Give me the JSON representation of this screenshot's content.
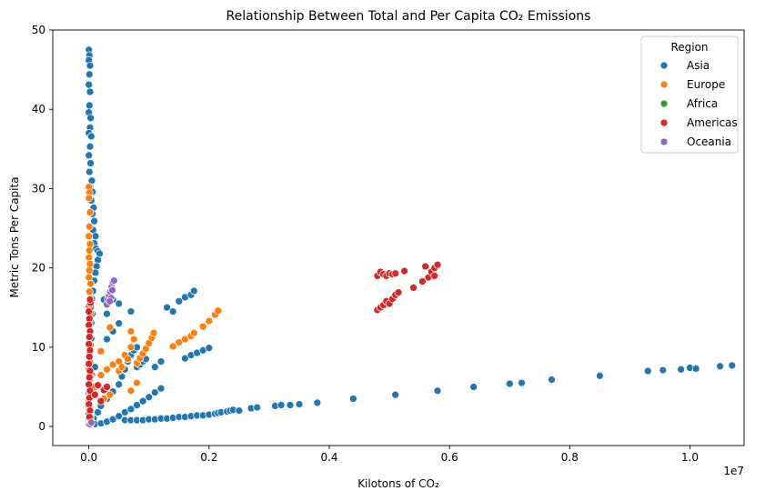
{
  "chart_data": {
    "type": "scatter",
    "title": "Relationship Between Total and Per Capita CO₂ Emissions",
    "xlabel": "Kilotons of CO₂",
    "ylabel": "Metric Tons Per Capita",
    "x_offset_label": "1e7",
    "x_scale": 10000000,
    "xlim": [
      -0.06,
      1.09
    ],
    "ylim": [
      -2.4,
      50
    ],
    "x_ticks": [
      0.0,
      0.2,
      0.4,
      0.6,
      0.8,
      1.0
    ],
    "x_tick_labels": [
      "0.0",
      "0.2",
      "0.4",
      "0.6",
      "0.8",
      "1.0"
    ],
    "y_ticks": [
      0,
      10,
      20,
      30,
      40,
      50
    ],
    "y_tick_labels": [
      "0",
      "10",
      "20",
      "30",
      "40",
      "50"
    ],
    "grid": false,
    "legend": {
      "title": "Region",
      "placement": "top-right"
    },
    "series": [
      {
        "name": "Asia",
        "color": "#1f77b4",
        "points": [
          [
            0.0,
            47.5
          ],
          [
            0.001,
            46.8
          ],
          [
            0.0,
            46.2
          ],
          [
            0.002,
            45.5
          ],
          [
            0.001,
            44.4
          ],
          [
            0.0,
            43.1
          ],
          [
            0.002,
            42.2
          ],
          [
            0.001,
            40.5
          ],
          [
            0.0,
            39.6
          ],
          [
            0.003,
            38.9
          ],
          [
            0.002,
            37.7
          ],
          [
            0.0,
            37.0
          ],
          [
            0.004,
            36.6
          ],
          [
            0.002,
            35.3
          ],
          [
            0.0,
            34.2
          ],
          [
            0.003,
            33.2
          ],
          [
            0.001,
            32.1
          ],
          [
            0.005,
            31.0
          ],
          [
            0.002,
            30.2
          ],
          [
            0.006,
            29.6
          ],
          [
            0.004,
            28.5
          ],
          [
            0.008,
            27.6
          ],
          [
            0.006,
            26.8
          ],
          [
            0.009,
            25.9
          ],
          [
            0.007,
            24.8
          ],
          [
            0.011,
            24.0
          ],
          [
            0.009,
            23.1
          ],
          [
            0.012,
            22.4
          ],
          [
            0.015,
            22.1
          ],
          [
            0.018,
            21.8
          ],
          [
            0.015,
            21.0
          ],
          [
            0.013,
            20.2
          ],
          [
            0.011,
            19.4
          ],
          [
            0.009,
            18.4
          ],
          [
            0.007,
            17.1
          ],
          [
            0.005,
            16.1
          ],
          [
            0.003,
            15.0
          ],
          [
            0.006,
            14.2
          ],
          [
            0.004,
            13.1
          ],
          [
            0.002,
            12.0
          ],
          [
            0.004,
            11.1
          ],
          [
            0.002,
            10.0
          ],
          [
            0.001,
            9.1
          ],
          [
            0.003,
            8.0
          ],
          [
            0.001,
            7.0
          ],
          [
            0.002,
            6.0
          ],
          [
            0.001,
            5.0
          ],
          [
            0.0,
            4.2
          ],
          [
            0.001,
            3.2
          ],
          [
            0.0,
            2.2
          ],
          [
            0.001,
            1.2
          ],
          [
            0.0,
            0.5
          ],
          [
            0.005,
            6.5
          ],
          [
            0.01,
            7.5
          ],
          [
            0.02,
            9.5
          ],
          [
            0.03,
            11.0
          ],
          [
            0.04,
            12.0
          ],
          [
            0.05,
            13.0
          ],
          [
            0.07,
            14.5
          ],
          [
            0.03,
            14.2
          ],
          [
            0.025,
            16.0
          ],
          [
            0.04,
            16.0
          ],
          [
            0.05,
            15.5
          ],
          [
            0.008,
            1.0
          ],
          [
            0.015,
            1.8
          ],
          [
            0.02,
            2.6
          ],
          [
            0.03,
            3.5
          ],
          [
            0.04,
            4.4
          ],
          [
            0.05,
            5.3
          ],
          [
            0.055,
            6.3
          ],
          [
            0.06,
            7.2
          ],
          [
            0.065,
            8.2
          ],
          [
            0.07,
            9.0
          ],
          [
            0.075,
            9.6
          ],
          [
            0.08,
            10.0
          ],
          [
            0.01,
            0.3
          ],
          [
            0.02,
            0.4
          ],
          [
            0.03,
            0.6
          ],
          [
            0.04,
            0.9
          ],
          [
            0.05,
            1.3
          ],
          [
            0.06,
            1.8
          ],
          [
            0.07,
            2.2
          ],
          [
            0.08,
            2.7
          ],
          [
            0.09,
            3.2
          ],
          [
            0.1,
            3.7
          ],
          [
            0.11,
            4.3
          ],
          [
            0.12,
            4.8
          ],
          [
            0.13,
            15.0
          ],
          [
            0.15,
            15.8
          ],
          [
            0.16,
            16.3
          ],
          [
            0.17,
            16.6
          ],
          [
            0.175,
            17.1
          ],
          [
            0.14,
            14.5
          ],
          [
            0.08,
            7.5
          ],
          [
            0.085,
            7.8
          ],
          [
            0.09,
            8.2
          ],
          [
            0.095,
            8.5
          ],
          [
            0.16,
            8.6
          ],
          [
            0.17,
            9.0
          ],
          [
            0.18,
            9.3
          ],
          [
            0.19,
            9.6
          ],
          [
            0.2,
            9.9
          ],
          [
            0.12,
            8.2
          ],
          [
            0.11,
            7.5
          ],
          [
            0.06,
            0.8
          ],
          [
            0.07,
            0.8
          ],
          [
            0.08,
            0.8
          ],
          [
            0.09,
            0.8
          ],
          [
            0.1,
            0.9
          ],
          [
            0.11,
            0.9
          ],
          [
            0.12,
            1.0
          ],
          [
            0.13,
            1.0
          ],
          [
            0.14,
            1.1
          ],
          [
            0.15,
            1.2
          ],
          [
            0.16,
            1.2
          ],
          [
            0.17,
            1.3
          ],
          [
            0.18,
            1.4
          ],
          [
            0.19,
            1.4
          ],
          [
            0.2,
            1.5
          ],
          [
            0.21,
            1.6
          ],
          [
            0.215,
            1.7
          ],
          [
            0.22,
            1.8
          ],
          [
            0.23,
            1.9
          ],
          [
            0.235,
            2.0
          ],
          [
            0.24,
            2.1
          ],
          [
            0.25,
            2.0
          ],
          [
            0.27,
            2.3
          ],
          [
            0.28,
            2.4
          ],
          [
            0.31,
            2.6
          ],
          [
            0.32,
            2.7
          ],
          [
            0.335,
            2.7
          ],
          [
            0.35,
            2.8
          ],
          [
            0.38,
            3.0
          ],
          [
            0.44,
            3.5
          ],
          [
            0.51,
            4.0
          ],
          [
            0.58,
            4.5
          ],
          [
            0.64,
            5.0
          ],
          [
            0.7,
            5.4
          ],
          [
            0.72,
            5.5
          ],
          [
            0.77,
            5.9
          ],
          [
            0.85,
            6.4
          ],
          [
            0.93,
            7.0
          ],
          [
            0.955,
            7.1
          ],
          [
            0.985,
            7.2
          ],
          [
            1.0,
            7.4
          ],
          [
            1.01,
            7.3
          ],
          [
            1.05,
            7.6
          ],
          [
            1.07,
            7.7
          ]
        ]
      },
      {
        "name": "Europe",
        "color": "#ff7f0e",
        "points": [
          [
            0.0,
            30.2
          ],
          [
            0.001,
            29.5
          ],
          [
            0.0,
            28.8
          ],
          [
            0.002,
            27.0
          ],
          [
            0.001,
            25.2
          ],
          [
            0.0,
            24.0
          ],
          [
            0.002,
            23.0
          ],
          [
            0.001,
            22.2
          ],
          [
            0.0,
            21.3
          ],
          [
            0.002,
            20.5
          ],
          [
            0.001,
            19.7
          ],
          [
            0.0,
            18.8
          ],
          [
            0.003,
            18.0
          ],
          [
            0.001,
            17.0
          ],
          [
            0.002,
            16.1
          ],
          [
            0.0,
            15.2
          ],
          [
            0.003,
            14.3
          ],
          [
            0.001,
            13.2
          ],
          [
            0.002,
            12.1
          ],
          [
            0.0,
            11.2
          ],
          [
            0.003,
            10.3
          ],
          [
            0.001,
            9.2
          ],
          [
            0.002,
            8.1
          ],
          [
            0.0,
            7.2
          ],
          [
            0.003,
            6.3
          ],
          [
            0.001,
            5.2
          ],
          [
            0.002,
            4.2
          ],
          [
            0.0,
            3.2
          ],
          [
            0.001,
            2.1
          ],
          [
            0.0,
            1.0
          ],
          [
            0.01,
            5.0
          ],
          [
            0.02,
            6.5
          ],
          [
            0.03,
            7.2
          ],
          [
            0.04,
            7.8
          ],
          [
            0.05,
            8.2
          ],
          [
            0.06,
            9.0
          ],
          [
            0.07,
            10.0
          ],
          [
            0.075,
            11.0
          ],
          [
            0.07,
            12.0
          ],
          [
            0.035,
            12.5
          ],
          [
            0.02,
            9.5
          ],
          [
            0.05,
            7.0
          ],
          [
            0.055,
            7.5
          ],
          [
            0.065,
            8.5
          ],
          [
            0.08,
            8.0
          ],
          [
            0.085,
            8.6
          ],
          [
            0.09,
            9.2
          ],
          [
            0.095,
            9.8
          ],
          [
            0.1,
            10.5
          ],
          [
            0.105,
            11.2
          ],
          [
            0.108,
            11.8
          ],
          [
            0.07,
            4.5
          ],
          [
            0.08,
            5.5
          ],
          [
            0.14,
            10.1
          ],
          [
            0.15,
            10.6
          ],
          [
            0.16,
            11.0
          ],
          [
            0.17,
            11.4
          ],
          [
            0.175,
            11.8
          ],
          [
            0.19,
            12.6
          ],
          [
            0.2,
            13.3
          ],
          [
            0.21,
            14.1
          ],
          [
            0.215,
            14.6
          ],
          [
            0.025,
            3.5
          ],
          [
            0.035,
            4.0
          ]
        ]
      },
      {
        "name": "Africa",
        "color": "#2ca02c",
        "points": [
          [
            0.0,
            0.3
          ],
          [
            0.001,
            0.6
          ],
          [
            0.0,
            0.9
          ],
          [
            0.002,
            0.5
          ],
          [
            0.001,
            1.1
          ],
          [
            0.003,
            0.8
          ],
          [
            0.002,
            1.4
          ],
          [
            0.004,
            0.4
          ],
          [
            0.0,
            1.6
          ],
          [
            0.003,
            1.2
          ]
        ]
      },
      {
        "name": "Americas",
        "color": "#d62728",
        "points": [
          [
            0.0,
            14.5
          ],
          [
            0.001,
            13.6
          ],
          [
            0.0,
            12.8
          ],
          [
            0.002,
            12.0
          ],
          [
            0.001,
            11.3
          ],
          [
            0.0,
            10.4
          ],
          [
            0.002,
            9.6
          ],
          [
            0.001,
            8.8
          ],
          [
            0.0,
            7.9
          ],
          [
            0.002,
            7.0
          ],
          [
            0.001,
            6.2
          ],
          [
            0.0,
            5.3
          ],
          [
            0.002,
            4.5
          ],
          [
            0.001,
            3.6
          ],
          [
            0.0,
            2.8
          ],
          [
            0.002,
            2.0
          ],
          [
            0.001,
            1.2
          ],
          [
            0.003,
            15.6
          ],
          [
            0.002,
            16.0
          ],
          [
            0.01,
            4.0
          ],
          [
            0.015,
            5.2
          ],
          [
            0.02,
            3.2
          ],
          [
            0.025,
            4.6
          ],
          [
            0.03,
            5.0
          ],
          [
            0.48,
            14.7
          ],
          [
            0.485,
            15.0
          ],
          [
            0.49,
            15.3
          ],
          [
            0.495,
            15.8
          ],
          [
            0.5,
            15.5
          ],
          [
            0.505,
            16.1
          ],
          [
            0.51,
            16.6
          ],
          [
            0.515,
            16.9
          ],
          [
            0.48,
            19.0
          ],
          [
            0.485,
            19.5
          ],
          [
            0.49,
            19.2
          ],
          [
            0.495,
            19.0
          ],
          [
            0.5,
            19.3
          ],
          [
            0.505,
            19.2
          ],
          [
            0.51,
            19.3
          ],
          [
            0.525,
            19.6
          ],
          [
            0.54,
            17.5
          ],
          [
            0.555,
            18.3
          ],
          [
            0.56,
            20.2
          ],
          [
            0.565,
            18.8
          ],
          [
            0.57,
            19.5
          ],
          [
            0.575,
            20.0
          ],
          [
            0.58,
            20.4
          ],
          [
            0.575,
            19.0
          ]
        ]
      },
      {
        "name": "Oceania",
        "color": "#9467bd",
        "points": [
          [
            0.03,
            15.4
          ],
          [
            0.032,
            16.0
          ],
          [
            0.034,
            16.5
          ],
          [
            0.036,
            17.0
          ],
          [
            0.038,
            17.6
          ],
          [
            0.04,
            18.2
          ],
          [
            0.042,
            18.4
          ],
          [
            0.037,
            16.2
          ],
          [
            0.035,
            15.8
          ],
          [
            0.039,
            17.2
          ],
          [
            0.002,
            0.3
          ],
          [
            0.004,
            0.5
          ]
        ]
      }
    ]
  }
}
